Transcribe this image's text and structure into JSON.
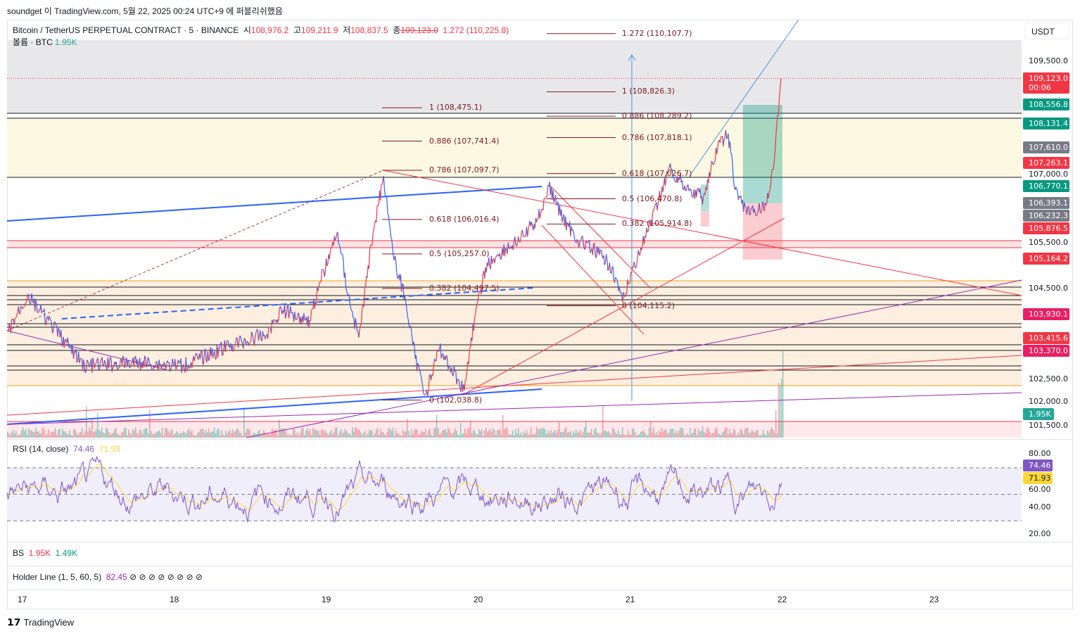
{
  "published_line": "soundget 이 TradingView.com, 5월 22, 2025 00:24 UTC+9 에 퍼블리쉬했음",
  "legend": {
    "symbol": "Bitcoin / TetherUS PERPETUAL CONTRACT · 5 · BINANCE",
    "open_label": "시",
    "open": "108,976.2",
    "high_label": "고",
    "high": "109,211.9",
    "low_label": "저",
    "low": "108,837.5",
    "close_label": "종",
    "close": "109,123.0",
    "overlay": "1.272 (110,225.8)",
    "volume_label": "볼륨 · BTC",
    "volume": "1.95K"
  },
  "currency_button": "USDT",
  "colors": {
    "up": "#f23645",
    "down": "#2962ff",
    "teal": "#089981",
    "gray": "#787b86",
    "rsi": "#7e57c2",
    "rsi_ma": "#fdd835",
    "pink_tag": "#e91e63"
  },
  "chart_data": {
    "type": "line",
    "y_ticks": [
      109500,
      107000,
      105500,
      104500,
      102500,
      102000,
      101500
    ],
    "x_ticks": [
      "17",
      "18",
      "19",
      "20",
      "21",
      "22",
      "23"
    ],
    "series_approx": [
      [
        "05-16 22:00",
        103566
      ],
      [
        "05-17 01:00",
        104341
      ],
      [
        "05-17 10:00",
        102791
      ],
      [
        "05-17 19:00",
        102869
      ],
      [
        "05-18 01:30",
        102791
      ],
      [
        "05-18 09:20",
        103256
      ],
      [
        "05-18 14:50",
        103488
      ],
      [
        "05-18 17:05",
        104031
      ],
      [
        "05-18 21:35",
        103798
      ],
      [
        "05-18 23:15",
        104650
      ],
      [
        "05-19 02:00",
        105735
      ],
      [
        "05-19 03:40",
        104341
      ],
      [
        "05-19 05:20",
        103411
      ],
      [
        "05-19 07:35",
        105735
      ],
      [
        "05-19 09:15",
        106975
      ],
      [
        "05-19 10:55",
        105115
      ],
      [
        "05-19 12:35",
        104341
      ],
      [
        "05-19 14:15",
        102946
      ],
      [
        "05-19 15:55",
        102171
      ],
      [
        "05-19 18:05",
        103178
      ],
      [
        "05-19 22:00",
        102249
      ],
      [
        "05-19 23:05",
        103411
      ],
      [
        "05-20 01:20",
        104960
      ],
      [
        "05-20 03:35",
        105270
      ],
      [
        "05-20 06:55",
        105580
      ],
      [
        "05-20 09:40",
        106045
      ],
      [
        "05-20 11:20",
        106742
      ],
      [
        "05-20 13:35",
        106045
      ],
      [
        "05-20 15:50",
        105580
      ],
      [
        "05-20 19:05",
        105270
      ],
      [
        "05-20 21:20",
        104960
      ],
      [
        "05-20 23:00",
        104186
      ],
      [
        "05-21 00:40",
        104960
      ],
      [
        "05-21 02:55",
        105735
      ],
      [
        "05-21 04:35",
        106355
      ],
      [
        "05-21 06:15",
        107130
      ],
      [
        "05-21 09:35",
        106665
      ],
      [
        "05-21 11:45",
        106510
      ],
      [
        "05-21 14:00",
        107595
      ],
      [
        "05-21 15:40",
        107905
      ],
      [
        "05-21 16:45",
        106665
      ],
      [
        "05-21 19:00",
        106123
      ],
      [
        "05-21 21:45",
        106355
      ],
      [
        "05-21 22:55",
        107285
      ],
      [
        "05-22 00:00",
        109123
      ]
    ],
    "zones": [
      {
        "from": 109965,
        "to": 108353,
        "color": "#e8e8ea"
      },
      {
        "from": 108245,
        "to": 106943,
        "color": "#fdf8e1"
      },
      {
        "from": 105549,
        "to": 105394,
        "color": "#fbe3e4"
      },
      {
        "from": 104666,
        "to": 102357,
        "color": "#fdefe0"
      },
      {
        "from": 101567,
        "to": 101100,
        "color": "#fde8ec"
      }
    ],
    "black_levels": [
      108353,
      108245,
      106943,
      104526,
      104341,
      104248,
      104139,
      103721,
      103643,
      103256,
      103132,
      102791,
      102698
    ],
    "red_levels": [
      105549,
      105394,
      101567
    ],
    "orange_levels": [
      104666,
      102357
    ],
    "fib_left": [
      {
        "label": "1 (108,475.1)",
        "p": 108475.1
      },
      {
        "label": "0.886 (107,741.4)",
        "p": 107741.4
      },
      {
        "label": "0.786 (107,097.7)",
        "p": 107097.7
      },
      {
        "label": "0.618 (106,016.4)",
        "p": 106016.4
      },
      {
        "label": "0.5 (105,257.0)",
        "p": 105257.0
      },
      {
        "label": "0.382 (104,497.5)",
        "p": 104497.5
      },
      {
        "label": "0 (102,038.8)",
        "p": 102038.8
      }
    ],
    "fib_right": [
      {
        "label": "1.272 (110,107.7)",
        "p": 110107.7
      },
      {
        "label": "1 (108,826.3)",
        "p": 108826.3
      },
      {
        "label": "0.886 (108,289.2)",
        "p": 108289.2
      },
      {
        "label": "0.786 (107,818.1)",
        "p": 107818.1
      },
      {
        "label": "0.618 (107,026.7)",
        "p": 107026.7
      },
      {
        "label": "0.5 (106,470.8)",
        "p": 106470.8
      },
      {
        "label": "0.382 (105,914.8)",
        "p": 105914.8
      },
      {
        "label": "0 (104,115.2)",
        "p": 104115.2
      }
    ],
    "price_tags": [
      {
        "v": "109,123.0",
        "sub": "00:06",
        "p": 109123,
        "c": "#f23645"
      },
      {
        "v": "108,556.8",
        "p": 108556.8,
        "c": "#089981"
      },
      {
        "v": "108,131.4",
        "p": 108131.4,
        "c": "#089981"
      },
      {
        "v": "107,610.0",
        "p": 107610,
        "c": "#787b86"
      },
      {
        "v": "107,263.1",
        "p": 107263.1,
        "c": "#f23645"
      },
      {
        "v": "106,770.1",
        "p": 106770.1,
        "c": "#089981"
      },
      {
        "v": "106,393.1",
        "p": 106393.1,
        "c": "#787b86"
      },
      {
        "v": "106,232.3",
        "p": 106232.3,
        "c": "#787b86"
      },
      {
        "v": "105,876.5",
        "p": 105876.5,
        "c": "#f23645"
      },
      {
        "v": "105,164.2",
        "p": 105164.2,
        "c": "#f23645"
      },
      {
        "v": "103,930.1",
        "p": 103930.1,
        "c": "#e91e63"
      },
      {
        "v": "103,415.6",
        "p": 103415.6,
        "c": "#f23645"
      },
      {
        "v": "103,370.0",
        "p": 103370,
        "c": "#e91e63"
      }
    ],
    "volume_tag": "1.95K"
  },
  "rsi": {
    "label": "RSI (14, close)",
    "value": "74.46",
    "ma": "71.93",
    "ticks": [
      "80.00",
      "60.00",
      "40.00",
      "20.00"
    ]
  },
  "bs": {
    "label": "BS",
    "v1": "1.95K",
    "v2": "1.49K"
  },
  "holder": {
    "label": "Holder Line (1, 5, 60, 5)",
    "value": "82.45",
    "icons": 8
  },
  "footer": "TradingView"
}
